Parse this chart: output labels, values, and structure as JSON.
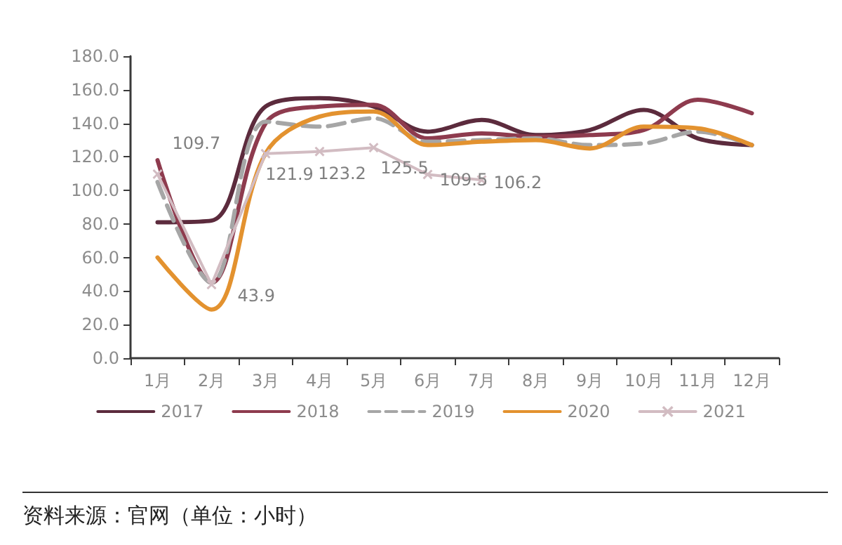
{
  "chart_data": {
    "type": "line",
    "categories": [
      "1月",
      "2月",
      "3月",
      "4月",
      "5月",
      "6月",
      "7月",
      "8月",
      "9月",
      "10月",
      "11月",
      "12月"
    ],
    "series": [
      {
        "name": "2017",
        "color": "#5c2b3d",
        "values": [
          81,
          82,
          150,
          155,
          150,
          135,
          142,
          133,
          136,
          148,
          131,
          127
        ]
      },
      {
        "name": "2018",
        "color": "#8e3b4e",
        "values": [
          118,
          45,
          140,
          150,
          151,
          131,
          134,
          132,
          133,
          136,
          154,
          146
        ]
      },
      {
        "name": "2019",
        "color": "#a6a6a6",
        "line_style": "dashed",
        "values": [
          105,
          45,
          141,
          138,
          143,
          129,
          130,
          131,
          127,
          128,
          135,
          127
        ]
      },
      {
        "name": "2020",
        "color": "#e3922f",
        "values": [
          60,
          29,
          122,
          144,
          147,
          127,
          129,
          130,
          125,
          138,
          137,
          127
        ]
      },
      {
        "name": "2021",
        "color": "#d2bcc2",
        "marker": "cross",
        "values": [
          109.7,
          43.9,
          121.9,
          123.2,
          125.5,
          109.5,
          106.2,
          null,
          null,
          null,
          null,
          null
        ],
        "value_labels": [
          "109.7",
          "43.9",
          "121.9",
          "123.2",
          "125.5",
          "109.5",
          "106.2",
          null,
          null,
          null,
          null,
          null
        ]
      }
    ],
    "ylim": [
      0,
      180
    ],
    "yticks": [
      {
        "value": 0,
        "label": "0.0"
      },
      {
        "value": 20,
        "label": "20.0"
      },
      {
        "value": 40,
        "label": "40.0"
      },
      {
        "value": 60,
        "label": "60.0"
      },
      {
        "value": 80,
        "label": "80.0"
      },
      {
        "value": 100,
        "label": "100.0"
      },
      {
        "value": 120,
        "label": "120.0"
      },
      {
        "value": 140,
        "label": "140.0"
      },
      {
        "value": 160,
        "label": "160.0"
      },
      {
        "value": 180,
        "label": "180.0"
      }
    ],
    "grid": false,
    "legend": "bottom",
    "marker": "none",
    "line_style": "solid",
    "annotations": [
      "资料来源：官网（单位：小时）"
    ]
  }
}
